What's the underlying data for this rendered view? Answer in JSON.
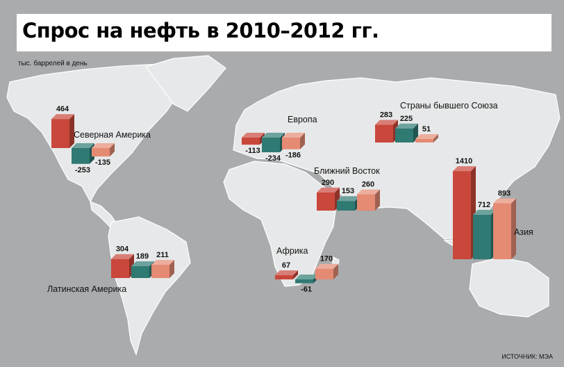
{
  "title": "Спрос на нефть в 2010–2012 гг.",
  "units": "тыс. баррелей в день",
  "source": "ИСТОЧНИК: МЭА",
  "colors": {
    "bar1": "#c9473b",
    "bar2": "#2f7a73",
    "bar3": "#e58a73",
    "land": "#e7e8e9",
    "sea": "#a9abad"
  },
  "chart_data": {
    "type": "bar",
    "title": "Спрос на нефть в 2010–2012 гг.",
    "ylabel": "тыс. баррелей в день",
    "regions": [
      {
        "name": "Северная Америка",
        "values": [
          464,
          -253,
          -135
        ]
      },
      {
        "name": "Латинская Америка",
        "values": [
          304,
          189,
          211
        ]
      },
      {
        "name": "Европа",
        "values": [
          -113,
          -234,
          -186
        ]
      },
      {
        "name": "Страны бывшего Союза",
        "values": [
          283,
          225,
          51
        ]
      },
      {
        "name": "Ближний Восток",
        "values": [
          290,
          153,
          260
        ]
      },
      {
        "name": "Африка",
        "values": [
          67,
          -61,
          170
        ]
      },
      {
        "name": "Азия",
        "values": [
          1410,
          712,
          893
        ]
      }
    ]
  }
}
